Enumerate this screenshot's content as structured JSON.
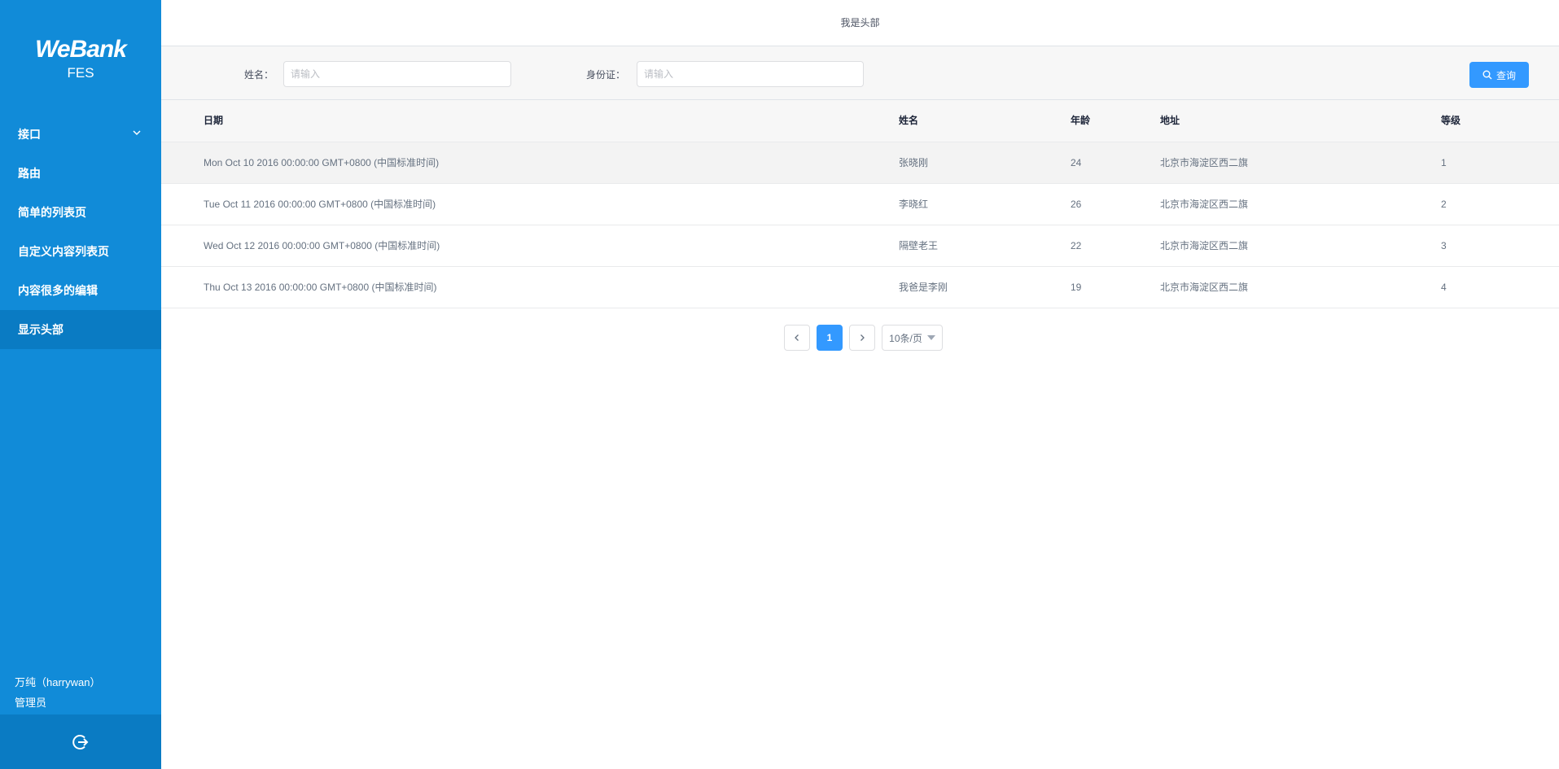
{
  "sidebar": {
    "logo": "WeBank",
    "sub": "FES",
    "items": [
      {
        "label": "接口",
        "expandable": true
      },
      {
        "label": "路由"
      },
      {
        "label": "简单的列表页"
      },
      {
        "label": "自定义内容列表页"
      },
      {
        "label": "内容很多的编辑"
      },
      {
        "label": "显示头部",
        "active": true
      }
    ],
    "user_name": "万纯（harrywan）",
    "user_role": "管理员",
    "logout_icon": "logout-icon"
  },
  "header": {
    "title": "我是头部"
  },
  "filter": {
    "name_label": "姓名：",
    "name_placeholder": "请输入",
    "id_label": "身份证：",
    "id_placeholder": "请输入",
    "query_label": "查询"
  },
  "table": {
    "columns": [
      "日期",
      "姓名",
      "年龄",
      "地址",
      "等级"
    ],
    "rows": [
      [
        "Mon Oct 10 2016 00:00:00 GMT+0800 (中国标准时间)",
        "张晓刚",
        "24",
        "北京市海淀区西二旗",
        "1"
      ],
      [
        "Tue Oct 11 2016 00:00:00 GMT+0800 (中国标准时间)",
        "李晓红",
        "26",
        "北京市海淀区西二旗",
        "2"
      ],
      [
        "Wed Oct 12 2016 00:00:00 GMT+0800 (中国标准时间)",
        "隔壁老王",
        "22",
        "北京市海淀区西二旗",
        "3"
      ],
      [
        "Thu Oct 13 2016 00:00:00 GMT+0800 (中国标准时间)",
        "我爸是李刚",
        "19",
        "北京市海淀区西二旗",
        "4"
      ]
    ]
  },
  "pagination": {
    "current": "1",
    "page_size": "10条/页"
  },
  "colors": {
    "sidebar": "#118bd8",
    "sidebar_active": "#0a7bc3",
    "primary": "#3399ff"
  }
}
